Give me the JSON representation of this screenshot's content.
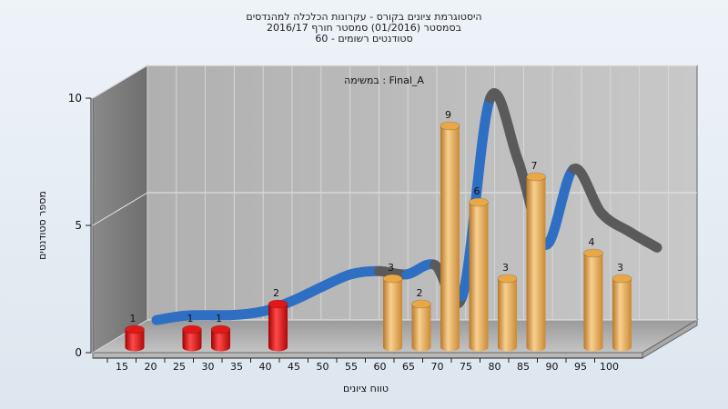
{
  "chart_data": {
    "type": "bar",
    "title_lines": [
      "היסטוגרמת ציונים בקורס - עקרונות הכלכלה למהנדסים",
      "בסמסטר  (01/2016)  סמסטר חורף  2016/17",
      "סטודנטים רשומים - 60"
    ],
    "annotation": "במשימה : Final_A",
    "xlabel": "טווח ציונים",
    "ylabel": "מספר סטודנטים",
    "ylim": [
      0,
      10
    ],
    "yticks": [
      "0",
      "5",
      "10"
    ],
    "categories": [
      "15",
      "20",
      "25",
      "30",
      "35",
      "40",
      "45",
      "50",
      "55",
      "60",
      "65",
      "70",
      "75",
      "80",
      "85",
      "90",
      "95",
      "100"
    ],
    "values": [
      1,
      0,
      1,
      1,
      0,
      2,
      0,
      0,
      0,
      3,
      2,
      9,
      6,
      3,
      7,
      0,
      4,
      3
    ],
    "bar_colors": {
      "fail": "#e01818",
      "pass": "#e8a848"
    },
    "fail_threshold_index": 9,
    "trend_line": {
      "colors": {
        "rising": "#2e6fc4",
        "falling": "#5a5a5a"
      },
      "values": [
        0.35,
        0.55,
        0.6,
        0.65,
        0.85,
        1.3,
        1.85,
        2.35,
        2.5,
        2.4,
        2.8,
        1.6,
        9.4,
        7.0,
        3.7,
        6.7,
        5.0,
        4.3,
        3.7
      ]
    },
    "grid": true
  }
}
